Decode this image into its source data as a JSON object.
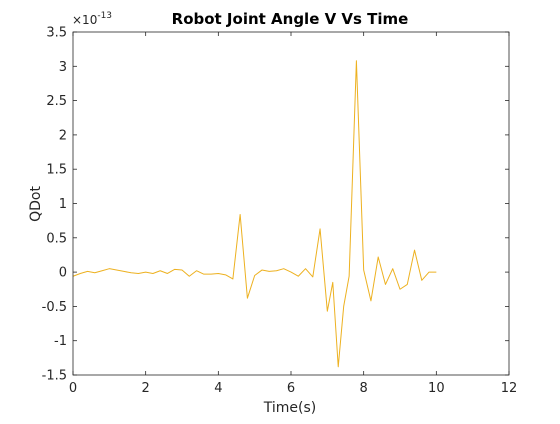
{
  "chart_data": {
    "type": "line",
    "title": "Robot Joint Angle V Vs Time",
    "xlabel": "Time(s)",
    "ylabel": "QDot",
    "xlim": [
      0,
      12
    ],
    "ylim": [
      -1.5,
      3.5
    ],
    "y_multiplier": "×10",
    "y_exponent": "-13",
    "xticks": [
      0,
      2,
      4,
      6,
      8,
      10,
      12
    ],
    "xtick_labels": [
      "0",
      "2",
      "4",
      "6",
      "8",
      "10",
      "12"
    ],
    "yticks": [
      -1.5,
      -1,
      -0.5,
      0,
      0.5,
      1,
      1.5,
      2,
      2.5,
      3,
      3.5
    ],
    "ytick_labels": [
      "-1.5",
      "-1",
      "-0.5",
      "0",
      "0.5",
      "1",
      "1.5",
      "2",
      "2.5",
      "3",
      "3.5"
    ],
    "grid": false,
    "series": [
      {
        "color": "#EDB120",
        "x": [
          0,
          0.2,
          0.4,
          0.6,
          0.8,
          1.0,
          1.2,
          1.4,
          1.6,
          1.8,
          2.0,
          2.2,
          2.4,
          2.6,
          2.8,
          3.0,
          3.2,
          3.4,
          3.6,
          3.8,
          4.0,
          4.2,
          4.4,
          4.6,
          4.8,
          5.0,
          5.2,
          5.4,
          5.6,
          5.8,
          6.0,
          6.2,
          6.4,
          6.6,
          6.8,
          7.0,
          7.15,
          7.3,
          7.45,
          7.6,
          7.8,
          8.0,
          8.2,
          8.4,
          8.6,
          8.8,
          9.0,
          9.2,
          9.4,
          9.6,
          9.8,
          10.0
        ],
        "y": [
          -0.06,
          -0.02,
          0.01,
          -0.01,
          0.02,
          0.05,
          0.03,
          0.01,
          -0.01,
          -0.02,
          0.0,
          -0.02,
          0.02,
          -0.02,
          0.04,
          0.03,
          -0.06,
          0.02,
          -0.03,
          -0.03,
          -0.02,
          -0.04,
          -0.1,
          0.84,
          -0.38,
          -0.05,
          0.03,
          0.01,
          0.02,
          0.05,
          0.0,
          -0.06,
          0.05,
          -0.07,
          0.63,
          -0.57,
          -0.15,
          -1.38,
          -0.5,
          -0.06,
          3.08,
          0.03,
          -0.42,
          0.22,
          -0.18,
          0.05,
          -0.25,
          -0.18,
          0.32,
          -0.12,
          0.0,
          0.0
        ]
      }
    ]
  }
}
